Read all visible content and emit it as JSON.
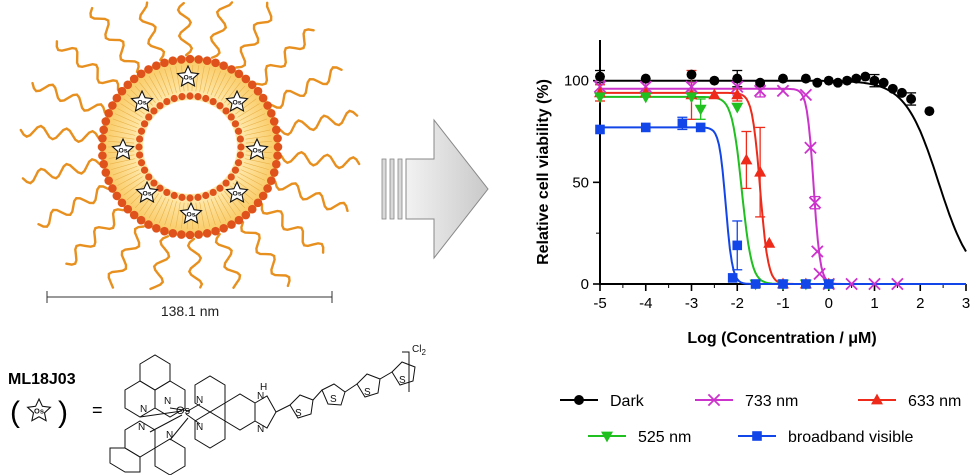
{
  "diagram": {
    "size_label": "138.1 nm",
    "compound_name": "ML18J03",
    "equals": "=",
    "payload_label": "Os",
    "counter_ion": "Cl",
    "counter_ion_count": "2",
    "atom_N": "N",
    "atom_H": "H",
    "atom_S": "S",
    "colors": {
      "peg": "#E8901F",
      "bilayer": "#FDD88A",
      "heads": "#E0521C"
    }
  },
  "chart_data": {
    "type": "line",
    "xlabel": "Log (Concentration / μM)",
    "ylabel": "Relative cell viability (%)",
    "xlim": [
      -5,
      3
    ],
    "ylim": [
      0,
      120
    ],
    "xticks": [
      -5,
      -4,
      -3,
      -2,
      -1,
      0,
      1,
      2,
      3
    ],
    "yticks": [
      0,
      50,
      100
    ],
    "grid": false,
    "legend_position": "bottom",
    "series": [
      {
        "name": "Dark",
        "color": "#000000",
        "marker": "circle",
        "points": [
          [
            -5,
            102
          ],
          [
            -4,
            101
          ],
          [
            -3,
            103
          ],
          [
            -2.5,
            100
          ],
          [
            -2,
            101
          ],
          [
            -1.5,
            99
          ],
          [
            -1,
            101
          ],
          [
            -0.5,
            101
          ],
          [
            -0.25,
            99
          ],
          [
            0,
            100
          ],
          [
            0.2,
            99
          ],
          [
            0.4,
            100
          ],
          [
            0.6,
            101
          ],
          [
            0.8,
            102
          ],
          [
            1,
            100
          ],
          [
            1.2,
            99
          ],
          [
            1.4,
            96
          ],
          [
            1.6,
            94
          ],
          [
            1.8,
            91
          ],
          [
            2.2,
            85
          ]
        ],
        "errors": [
          3,
          0,
          0,
          0,
          4,
          0,
          0,
          0,
          0,
          0,
          0,
          0,
          0,
          0,
          3,
          0,
          0,
          0,
          3,
          0
        ],
        "fit": {
          "top": 100,
          "bottom": 0,
          "logEC50": 2.4,
          "hill": -1.2
        }
      },
      {
        "name": "733 nm",
        "color": "#CC33CC",
        "marker": "x",
        "points": [
          [
            -5,
            97
          ],
          [
            -4,
            97
          ],
          [
            -3,
            97
          ],
          [
            -2,
            97
          ],
          [
            -1.5,
            95
          ],
          [
            -1,
            95
          ],
          [
            -0.5,
            93
          ],
          [
            -0.4,
            67
          ],
          [
            -0.3,
            40
          ],
          [
            -0.25,
            16
          ],
          [
            -0.2,
            5
          ],
          [
            0,
            0
          ],
          [
            0.5,
            0
          ],
          [
            1,
            0
          ],
          [
            1.5,
            0
          ]
        ],
        "errors": [
          3,
          2,
          2,
          4,
          3,
          0,
          0,
          0,
          3,
          0,
          0,
          0,
          0,
          0,
          0
        ],
        "fit": {
          "top": 96,
          "bottom": 0,
          "logEC50": -0.33,
          "hill": -6
        }
      },
      {
        "name": "633 nm",
        "color": "#EE2A1A",
        "marker": "triangle-up",
        "points": [
          [
            -5,
            94
          ],
          [
            -4,
            94
          ],
          [
            -3,
            93
          ],
          [
            -2.5,
            93
          ],
          [
            -2,
            93
          ],
          [
            -1.8,
            61
          ],
          [
            -1.5,
            55
          ],
          [
            -1.3,
            20
          ],
          [
            -1,
            0
          ],
          [
            -0.5,
            0
          ],
          [
            0,
            0
          ]
        ],
        "errors": [
          4,
          0,
          12,
          0,
          3,
          14,
          22,
          0,
          0,
          0,
          0
        ],
        "fit": {
          "top": 94,
          "bottom": 0,
          "logEC50": -1.5,
          "hill": -5
        }
      },
      {
        "name": "525 nm",
        "color": "#1FC01F",
        "marker": "triangle-down",
        "points": [
          [
            -5,
            92
          ],
          [
            -4,
            92
          ],
          [
            -3,
            92
          ],
          [
            -2.8,
            86
          ],
          [
            -2,
            87
          ],
          [
            -1.6,
            0
          ],
          [
            -1,
            0
          ],
          [
            -0.5,
            0
          ],
          [
            0,
            0
          ]
        ],
        "errors": [
          0,
          0,
          0,
          5,
          0,
          0,
          0,
          0,
          0
        ],
        "fit": {
          "top": 92,
          "bottom": 0,
          "logEC50": -1.9,
          "hill": -4
        }
      },
      {
        "name": "broadband visible",
        "color": "#1346E8",
        "marker": "square",
        "points": [
          [
            -5,
            76
          ],
          [
            -4,
            77
          ],
          [
            -3.2,
            79
          ],
          [
            -2.8,
            77
          ],
          [
            -2,
            19
          ],
          [
            -2.1,
            3
          ],
          [
            -1.6,
            0
          ],
          [
            -1,
            0
          ],
          [
            -0.5,
            0
          ],
          [
            0,
            0
          ]
        ],
        "errors": [
          0,
          0,
          3,
          0,
          12,
          0,
          0,
          0,
          0,
          0
        ],
        "fit": {
          "top": 77,
          "bottom": 0,
          "logEC50": -2.25,
          "hill": -6
        }
      }
    ]
  }
}
